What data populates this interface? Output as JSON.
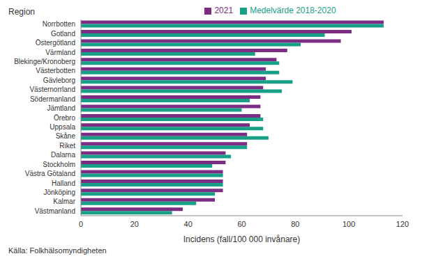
{
  "chart_data": {
    "type": "bar",
    "orientation": "horizontal",
    "y_label": "Region",
    "x_label": "Incidens (fall/100 000 invånare)",
    "source": "Källa: Folkhälsomyndigheten",
    "categories": [
      "Norrbotten",
      "Gotland",
      "Östergötland",
      "Värmland",
      "Blekinge/Kronoberg",
      "Västerbotten",
      "Gävleborg",
      "Västernorrland",
      "Södermanland",
      "Jämtland",
      "Örebro",
      "Uppsala",
      "Skåne",
      "Riket",
      "Dalarna",
      "Stockholm",
      "Västra Götaland",
      "Halland",
      "Jönköping",
      "Kalmar",
      "Västmanland"
    ],
    "series": [
      {
        "name": "2021",
        "color": "#7b2d83",
        "values": [
          113,
          101,
          97,
          77,
          73,
          69,
          69,
          68,
          67,
          67,
          67,
          63,
          62,
          62,
          54,
          54,
          53,
          53,
          53,
          50,
          38
        ]
      },
      {
        "name": "Medelvärde 2018-2020",
        "color": "#17a086",
        "values": [
          113,
          91,
          82,
          65,
          74,
          74,
          79,
          75,
          63,
          60,
          68,
          68,
          70,
          62,
          56,
          49,
          53,
          53,
          50,
          43,
          34
        ]
      }
    ],
    "xlim": [
      0,
      120
    ],
    "xticks": [
      0,
      20,
      40,
      60,
      80,
      100,
      120
    ],
    "grid": false,
    "legend": "top"
  }
}
